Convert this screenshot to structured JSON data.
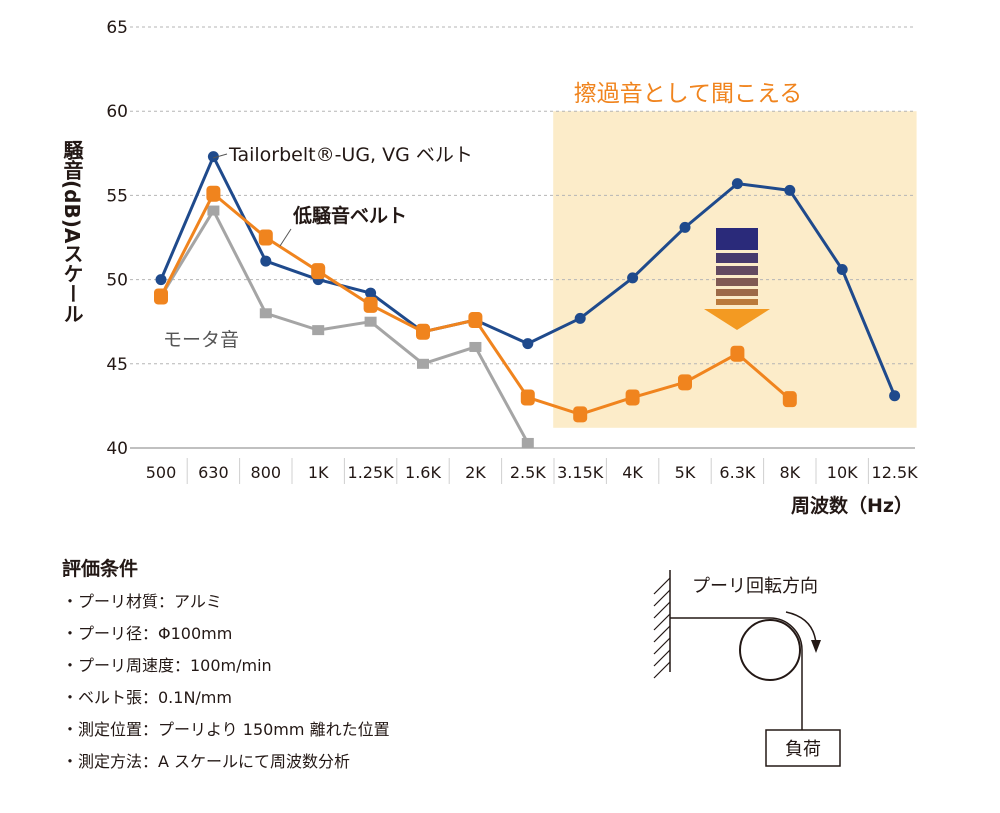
{
  "chart_data": {
    "type": "line",
    "categories": [
      "500",
      "630",
      "800",
      "1K",
      "1.25K",
      "1.6K",
      "2K",
      "2.5K",
      "3.15K",
      "4K",
      "5K",
      "6.3K",
      "8K",
      "10K",
      "12.5K"
    ],
    "ylim": [
      40,
      65
    ],
    "yticks": [
      40,
      45,
      50,
      55,
      60,
      65
    ],
    "grid": true,
    "ylabel": "騒音(dB)Aスケール",
    "xlabel": "周波数（Hz）",
    "highlight": {
      "label": "擦過音として聞こえる",
      "from": "3.15K",
      "to": "12.5K",
      "ymin": 41.2,
      "ymax": 60,
      "color": "#fcecc9"
    },
    "series": [
      {
        "name": "Tailorbelt®-UG, VG ベルト",
        "color": "#1f4a8c",
        "marker": "circle",
        "values": [
          50.0,
          57.3,
          51.1,
          50.0,
          49.2,
          46.9,
          47.6,
          46.2,
          47.7,
          50.1,
          53.1,
          55.7,
          55.3,
          50.6,
          43.1
        ]
      },
      {
        "name": "低騒音ベルト",
        "color": "#f0841e",
        "marker": "rounded-rect",
        "values": [
          49.0,
          55.1,
          52.5,
          50.5,
          48.5,
          46.9,
          47.6,
          43.0,
          42.0,
          43.0,
          43.9,
          45.6,
          42.9,
          null,
          null
        ]
      },
      {
        "name": "モータ音",
        "color": "#a5a5a5",
        "marker": "square",
        "values": [
          49.0,
          54.1,
          48.0,
          47.0,
          47.5,
          45.0,
          46.0,
          40.3,
          null,
          null,
          null,
          null,
          null,
          null,
          null
        ]
      }
    ],
    "arrow_colors": {
      "top": "#2a2a7a",
      "bottom": "#f39a22"
    }
  },
  "conditions": {
    "title": "評価条件",
    "items": [
      "・プーリ材質：アルミ",
      "・プーリ径：Φ100mm",
      "・プーリ周速度：100m/min",
      "・ベルト張：0.1N/mm",
      "・測定位置：プーリより 150mm 離れた位置",
      "・測定方法：A スケールにて周波数分析"
    ]
  },
  "diagram": {
    "rotation_label": "プーリ回転方向",
    "load_label": "負荷"
  }
}
